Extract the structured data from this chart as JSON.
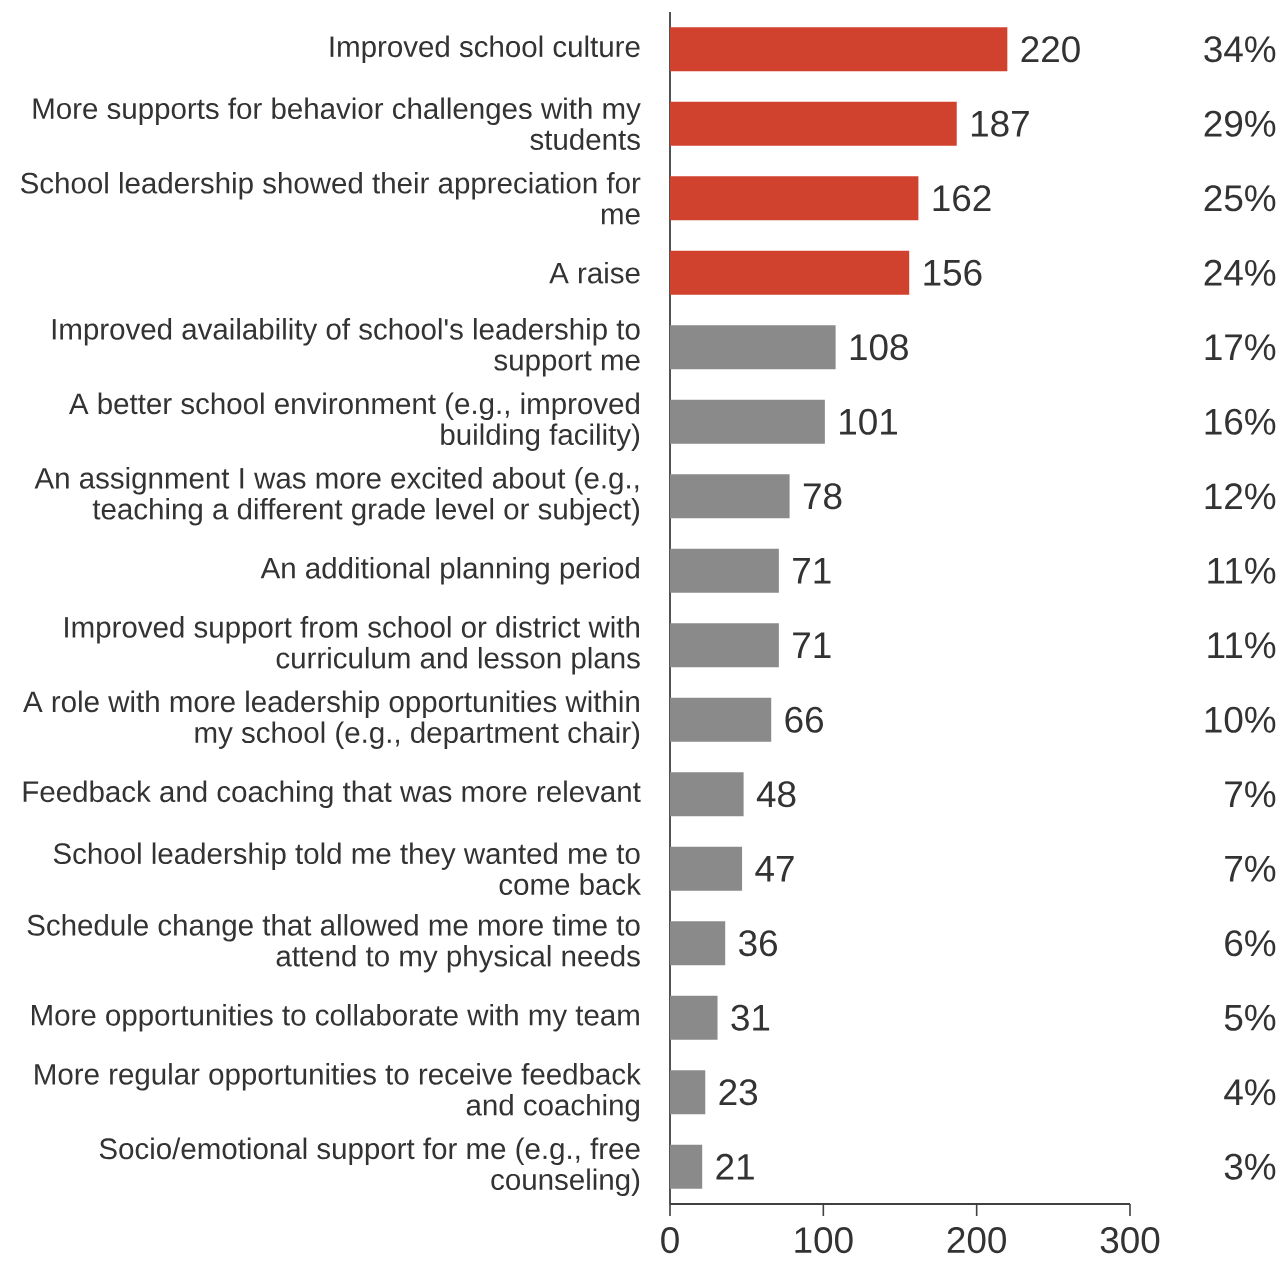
{
  "chart_data": {
    "type": "bar",
    "orientation": "horizontal",
    "categories": [
      "Improved school culture",
      "More supports for behavior challenges with my students",
      "School leadership showed their appreciation for me",
      "A raise",
      "Improved availability of school's leadership to support me",
      "A better school environment (e.g., improved building facility)",
      "An assignment I was more excited about (e.g., teaching a different grade level or subject)",
      "An additional planning period",
      "Improved support from school or district with curriculum and lesson plans",
      "A role with more leadership opportunities within my school (e.g., department chair)",
      "Feedback and coaching that was more relevant",
      "School leadership told me they wanted me to come back",
      "Schedule change that allowed me more time to attend to my physical needs",
      "More opportunities to collaborate with my team",
      "More regular opportunities to receive feedback and coaching",
      "Socio/emotional support for me (e.g., free counseling)"
    ],
    "values": [
      220,
      187,
      162,
      156,
      108,
      101,
      78,
      71,
      71,
      66,
      48,
      47,
      36,
      31,
      23,
      21
    ],
    "colors": [
      "#d0412e",
      "#d0412e",
      "#d0412e",
      "#d0412e",
      "#8a8a8a",
      "#8a8a8a",
      "#8a8a8a",
      "#8a8a8a",
      "#8a8a8a",
      "#8a8a8a",
      "#8a8a8a",
      "#8a8a8a",
      "#8a8a8a",
      "#8a8a8a",
      "#8a8a8a",
      "#8a8a8a"
    ],
    "xlim": [
      0,
      300
    ],
    "xticks": [
      0,
      100,
      200,
      300
    ],
    "data_labels": true,
    "annotations": [
      "34%",
      "29%",
      "25%",
      "24%",
      "17%",
      "16%",
      "12%",
      "11%",
      "11%",
      "10%",
      "7%",
      "7%",
      "6%",
      "5%",
      "4%",
      "3%"
    ]
  }
}
